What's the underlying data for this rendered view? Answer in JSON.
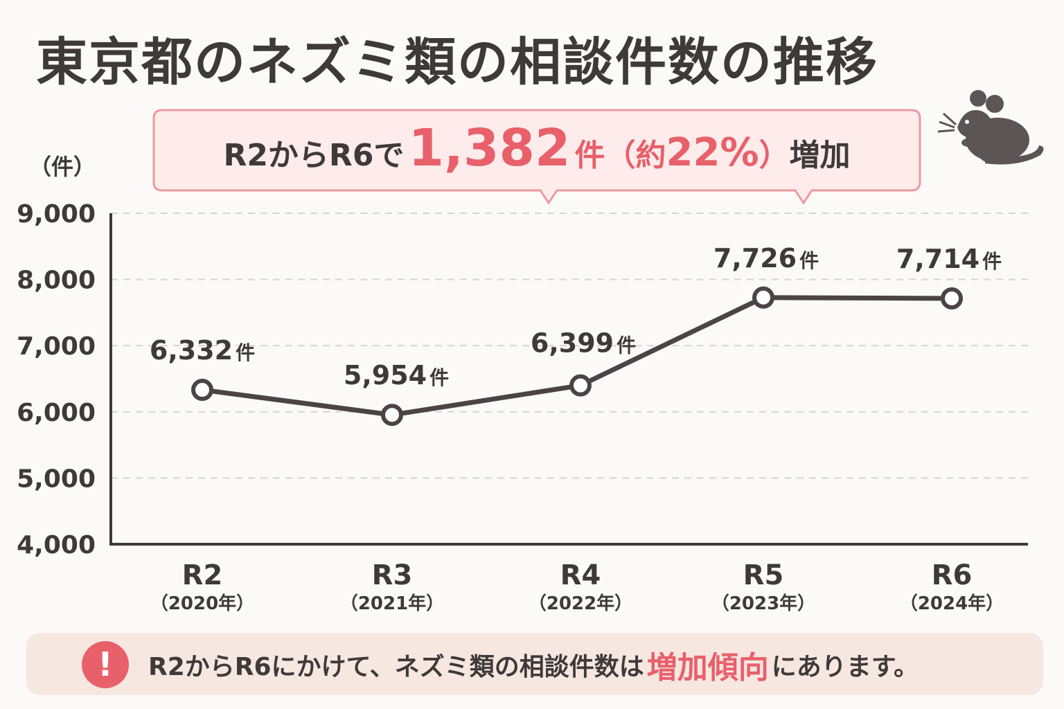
{
  "title": "東京都のネズミ類の相談件数の推移",
  "callout": {
    "prefix": "R2からR6で",
    "amount": "1,382",
    "amount_unit": "件",
    "paren_open": "（約",
    "percent": "22%",
    "paren_close": "）",
    "suffix": "増加"
  },
  "icons": {
    "mouse": "mouse-icon",
    "alert": "exclamation-icon"
  },
  "colors": {
    "text": "#3f3a3a",
    "accent": "#e8606a",
    "callout_bg": "#fde9e8",
    "note_bg": "#f6e7e1",
    "grid": "#d9d2d2"
  },
  "chart_data": {
    "type": "line",
    "unit_label": "（件）",
    "categories": [
      "R2",
      "R3",
      "R4",
      "R5",
      "R6"
    ],
    "category_sublabels": [
      "（2020年）",
      "（2021年）",
      "（2022年）",
      "（2023年）",
      "（2024年）"
    ],
    "values": [
      6332,
      5954,
      6399,
      7726,
      7714
    ],
    "data_labels": [
      "6,332",
      "5,954",
      "6,399",
      "7,726",
      "7,714"
    ],
    "data_label_unit": "件",
    "ylim": [
      4000,
      9000
    ],
    "yticks": [
      4000,
      5000,
      6000,
      7000,
      8000,
      9000
    ],
    "ytick_labels": [
      "4,000",
      "5,000",
      "6,000",
      "7,000",
      "8,000",
      "9,000"
    ],
    "grid": true
  },
  "note": {
    "icon_glyph": "!",
    "text_before": "R2からR6にかけて、ネズミ類の相談件数は",
    "emphasis": "増加傾向",
    "text_after": "にあります。"
  }
}
